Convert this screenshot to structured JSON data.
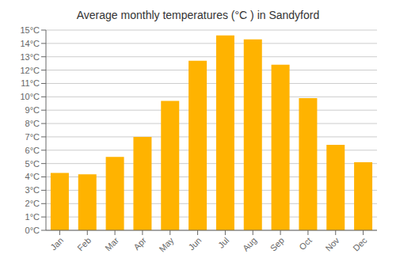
{
  "chart_data": {
    "type": "bar",
    "title": "Average monthly temperatures (°C ) in Sandyford",
    "categories": [
      "Jan",
      "Feb",
      "Mar",
      "Apr",
      "May",
      "Jun",
      "Jul",
      "Aug",
      "Sep",
      "Oct",
      "Nov",
      "Dec"
    ],
    "values": [
      4.3,
      4.2,
      5.5,
      7.0,
      9.7,
      12.7,
      14.6,
      14.3,
      12.4,
      9.9,
      6.4,
      5.1
    ],
    "color": "#FFB300",
    "ylim": [
      0,
      15
    ],
    "yticks": [
      {
        "value": 0,
        "label": "0°C"
      },
      {
        "value": 1,
        "label": "1°C"
      },
      {
        "value": 2,
        "label": "2°C"
      },
      {
        "value": 3,
        "label": "3°C"
      },
      {
        "value": 4,
        "label": "4°C"
      },
      {
        "value": 5,
        "label": "5°C"
      },
      {
        "value": 6,
        "label": "6°C"
      },
      {
        "value": 7,
        "label": "7°C"
      },
      {
        "value": 8,
        "label": "8°C"
      },
      {
        "value": 9,
        "label": "9°C"
      },
      {
        "value": 10,
        "label": "10°C"
      },
      {
        "value": 11,
        "label": "11°C"
      },
      {
        "value": 12,
        "label": "12°C"
      },
      {
        "value": 13,
        "label": "13°C"
      },
      {
        "value": 14,
        "label": "14°C"
      },
      {
        "value": 15,
        "label": "15°C"
      }
    ],
    "grid": true
  }
}
